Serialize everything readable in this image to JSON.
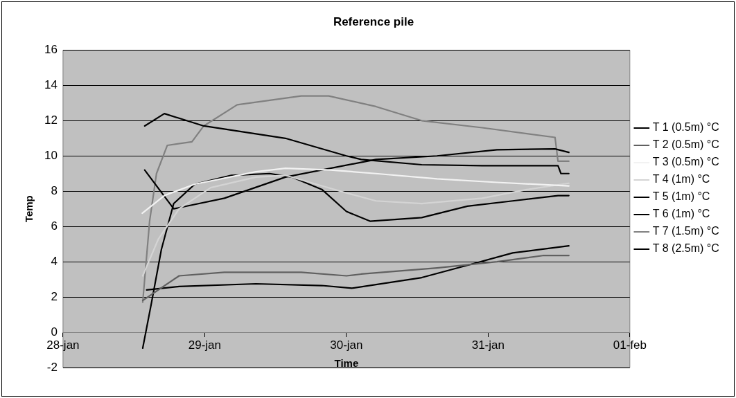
{
  "chart_data": {
    "type": "line",
    "title": "Reference pile",
    "xlabel": "Time",
    "ylabel": "Temp",
    "xlim": [
      "--01-28",
      "--02-01"
    ],
    "xticks": [
      {
        "value": "--01-28",
        "label": "28-jan"
      },
      {
        "value": "--01-29",
        "label": "29-jan"
      },
      {
        "value": "--01-30",
        "label": "30-jan"
      },
      {
        "value": "--01-31",
        "label": "31-jan"
      },
      {
        "value": "--02-01",
        "label": "01-feb"
      }
    ],
    "ylim": [
      -2,
      16
    ],
    "yticks": [
      -2,
      0,
      2,
      4,
      6,
      8,
      10,
      12,
      14,
      16
    ],
    "grid": "y",
    "legend": "right",
    "marker": "none",
    "line_style": "solid",
    "series": [
      {
        "name": "T 1 (0.5m) °C",
        "color": "#000000",
        "x": [
          "--01-28T13:50",
          "--01-28T17:10",
          "--01-28T23:50",
          "--01-29T13:40",
          "--01-30T00:00",
          "--01-30T02:30",
          "--01-30T12:45",
          "--01-30T23:00",
          "--01-31T11:50",
          "--01-31T12:20",
          "--01-31T13:40"
        ],
        "values": [
          11.7,
          12.4,
          11.7,
          11.0,
          10.0,
          9.8,
          9.5,
          9.45,
          9.45,
          9.0,
          9.0
        ]
      },
      {
        "name": "T 2 (0.5m) °C",
        "color": "#606060",
        "x": [
          "--01-28T13:30",
          "--01-28T19:40",
          "--01-29T03:20",
          "--01-29T16:20",
          "--01-30T00:00",
          "--01-30T02:30",
          "--01-30T15:20",
          "--01-31T01:30",
          "--01-31T09:15",
          "--01-31T13:40"
        ],
        "values": [
          1.8,
          3.2,
          3.4,
          3.4,
          3.2,
          3.3,
          3.65,
          4.0,
          4.35,
          4.35
        ]
      },
      {
        "name": "T 3 (0.5m) °C",
        "color": "#f2f2f2",
        "x": [
          "--01-28T13:25",
          "--01-28T17:10",
          "--01-28T22:20",
          "--01-29T08:40",
          "--01-29T13:40",
          "--01-29T21:20",
          "--01-30T05:00",
          "--01-30T15:20",
          "--01-31T01:30",
          "--01-31T13:40"
        ],
        "values": [
          6.75,
          7.75,
          8.4,
          9.1,
          9.3,
          9.2,
          9.0,
          8.7,
          8.5,
          8.3
        ]
      },
      {
        "name": "T 4 (1m) °C",
        "color": "#d4d4d4",
        "x": [
          "--01-28T13:30",
          "--01-28T16:10",
          "--01-28T19:40",
          "--01-29T01:00",
          "--01-29T08:40",
          "--01-29T13:40",
          "--01-30T00:00",
          "--01-30T05:00",
          "--01-30T12:45",
          "--01-30T23:00",
          "--01-31T06:45",
          "--01-31T13:40"
        ],
        "values": [
          3.2,
          5.3,
          7.0,
          8.2,
          8.8,
          8.9,
          7.9,
          7.45,
          7.3,
          7.6,
          8.1,
          8.45
        ]
      },
      {
        "name": "T 5 (1m) °C",
        "color": "#000000",
        "x": [
          "--01-28T13:50",
          "--01-28T18:45",
          "--01-29T03:20",
          "--01-29T13:40",
          "--01-30T05:00",
          "--01-30T15:20",
          "--01-31T01:30",
          "--01-31T11:20",
          "--01-31T13:40"
        ],
        "values": [
          9.2,
          7.0,
          7.6,
          8.8,
          9.8,
          10.0,
          10.35,
          10.4,
          10.2
        ]
      },
      {
        "name": "T 6 (1m) °C",
        "color": "#000000",
        "x": [
          "--01-28T13:30",
          "--01-28T15:00",
          "--01-28T16:40",
          "--01-28T18:45",
          "--01-28T22:20",
          "--01-29T04:30",
          "--01-29T11:00",
          "--01-29T14:45",
          "--01-29T19:50",
          "--01-30T00:00",
          "--01-30T04:00",
          "--01-30T12:45",
          "--01-30T20:30",
          "--01-31T04:10",
          "--01-31T11:50",
          "--01-31T13:40"
        ],
        "values": [
          -0.9,
          1.7,
          4.7,
          7.3,
          8.4,
          8.9,
          9.0,
          8.8,
          8.1,
          6.85,
          6.3,
          6.5,
          7.15,
          7.45,
          7.75,
          7.75
        ]
      },
      {
        "name": "T 7 (1.5m) °C",
        "color": "#808080",
        "x": [
          "--01-28T13:30",
          "--01-28T14:40",
          "--01-28T15:50",
          "--01-28T17:40",
          "--01-28T21:50",
          "--01-28T23:50",
          "--01-29T05:30",
          "--01-29T16:20",
          "--01-29T21:00",
          "--01-30T05:00",
          "--01-30T12:45",
          "--01-30T23:00",
          "--01-31T11:20",
          "--01-31T11:50",
          "--01-31T13:40"
        ],
        "values": [
          1.7,
          6.3,
          9.0,
          10.6,
          10.8,
          11.7,
          12.9,
          13.4,
          13.4,
          12.8,
          12.0,
          11.6,
          11.05,
          9.7,
          9.7
        ]
      },
      {
        "name": "T 8 (2.5m) °C",
        "color": "#000000",
        "x": [
          "--01-28T14:10",
          "--01-28T19:40",
          "--01-29T08:40",
          "--01-29T19:50",
          "--01-30T00:55",
          "--01-30T12:45",
          "--01-30T20:30",
          "--01-31T04:10",
          "--01-31T13:40"
        ],
        "values": [
          2.4,
          2.6,
          2.75,
          2.65,
          2.5,
          3.1,
          3.8,
          4.5,
          4.9
        ]
      }
    ]
  }
}
